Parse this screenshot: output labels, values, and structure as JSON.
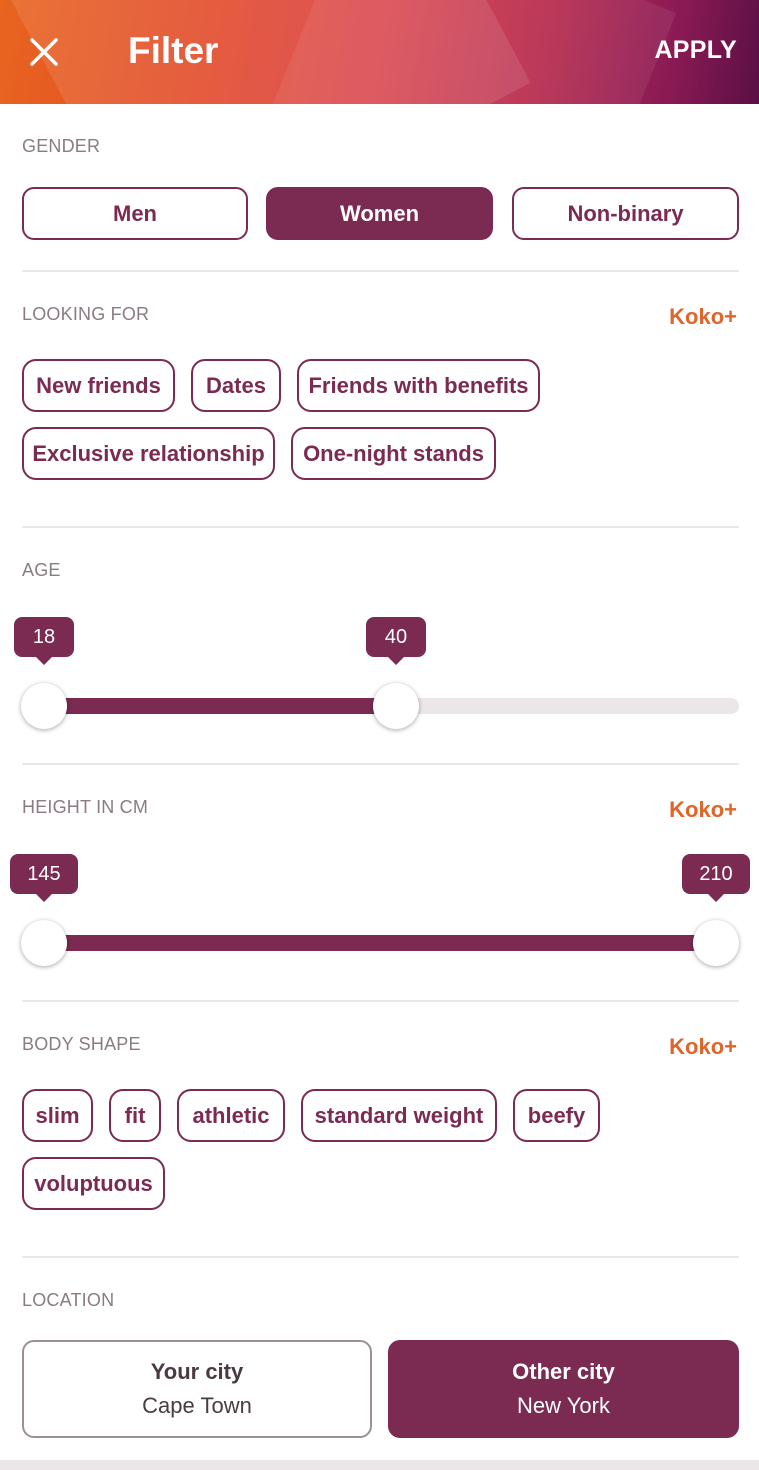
{
  "header": {
    "title": "Filter",
    "apply_label": "APPLY",
    "close_icon": "close-icon"
  },
  "gender": {
    "label": "GENDER",
    "options": [
      "Men",
      "Women",
      "Non-binary"
    ],
    "selected": "Women"
  },
  "looking_for": {
    "label": "LOOKING FOR",
    "premium_tag": "Koko+",
    "options": [
      "New friends",
      "Dates",
      "Friends with benefits",
      "Exclusive relationship",
      "One-night stands"
    ]
  },
  "age": {
    "label": "AGE",
    "min_value": "18",
    "max_value": "40",
    "range_fraction": [
      0.0,
      0.5
    ]
  },
  "height": {
    "label": "HEIGHT IN CM",
    "premium_tag": "Koko+",
    "min_value": "145",
    "max_value": "210",
    "range_fraction": [
      0.0,
      1.0
    ]
  },
  "body_shape": {
    "label": "BODY SHAPE",
    "premium_tag": "Koko+",
    "options": [
      "slim",
      "fit",
      "athletic",
      "standard weight",
      "beefy",
      "voluptuous"
    ]
  },
  "location": {
    "label": "LOCATION",
    "your_city": {
      "title": "Your city",
      "value": "Cape Town"
    },
    "other_city": {
      "title": "Other city",
      "value": "New York"
    },
    "selected": "Other city"
  },
  "colors": {
    "accent": "#7b2a52",
    "premium": "#e0652a",
    "track": "#ebe7e9"
  }
}
